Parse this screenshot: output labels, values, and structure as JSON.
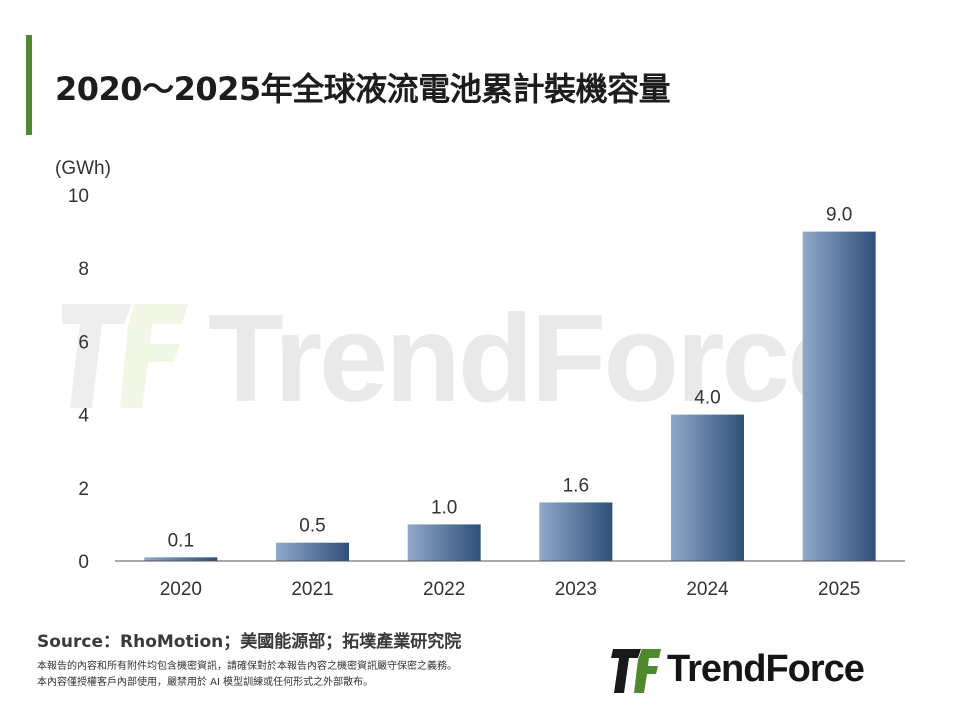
{
  "header": {
    "title": "2020～2025年全球液流電池累計裝機容量"
  },
  "chart_data": {
    "type": "bar",
    "categories": [
      "2020",
      "2021",
      "2022",
      "2023",
      "2024",
      "2025"
    ],
    "values": [
      0.1,
      0.5,
      1.0,
      1.6,
      4.0,
      9.0
    ],
    "value_labels": [
      "0.1",
      "0.5",
      "1.0",
      "1.6",
      "4.0",
      "9.0"
    ],
    "title": "2020～2025年全球液流電池累計裝機容量",
    "xlabel": "",
    "ylabel": "(GWh)",
    "ylim": [
      0,
      10
    ],
    "yticks": [
      0,
      2,
      4,
      6,
      8,
      10
    ],
    "grid": false,
    "legend": "none",
    "bar_gradient": [
      "#8fa9c9",
      "#2f5079"
    ]
  },
  "footer": {
    "source": "Source：RhoMotion；美國能源部；拓墣產業研究院",
    "disclaimer_line1": "本報告的內容和所有附件均包含機密資訊，請確保對於本報告內容之機密資訊嚴守保密之義務。",
    "disclaimer_line2": "本內容僅授權客戶內部使用，嚴禁用於 AI 模型訓練或任何形式之外部散布。"
  },
  "brand": {
    "logo_text": "TrendForce",
    "watermark_text": "TrendForce",
    "accent_color": "#4e8a2b",
    "logo_icon": "trendforce-logo-icon"
  }
}
